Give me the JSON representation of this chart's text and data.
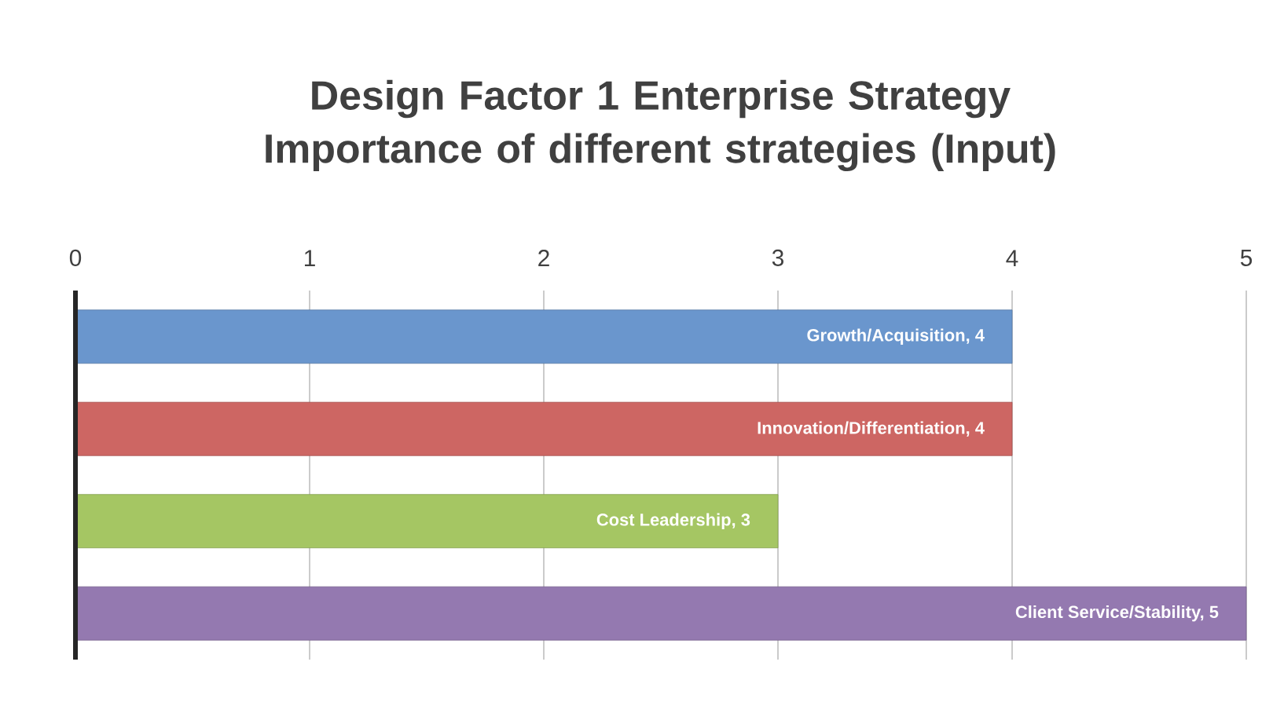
{
  "chart_data": {
    "type": "bar",
    "orientation": "horizontal",
    "title": "Design Factor 1 Enterprise Strategy Importance of different strategies (Input)",
    "categories": [
      null,
      null,
      null,
      null
    ],
    "value_labels": [
      "Growth/Acquisition, 4",
      "Innovation/Differentiation, 4",
      "Cost Leadership, 3",
      "Client Service/Stability, 5"
    ],
    "values": [
      4,
      4,
      3,
      5
    ],
    "colors": [
      "#6a96cd",
      "#cd6663",
      "#a5c663",
      "#9479b0"
    ],
    "xlim": [
      0,
      5
    ],
    "xticks": [
      0,
      1,
      2,
      3,
      4,
      5
    ],
    "grid": "x"
  }
}
